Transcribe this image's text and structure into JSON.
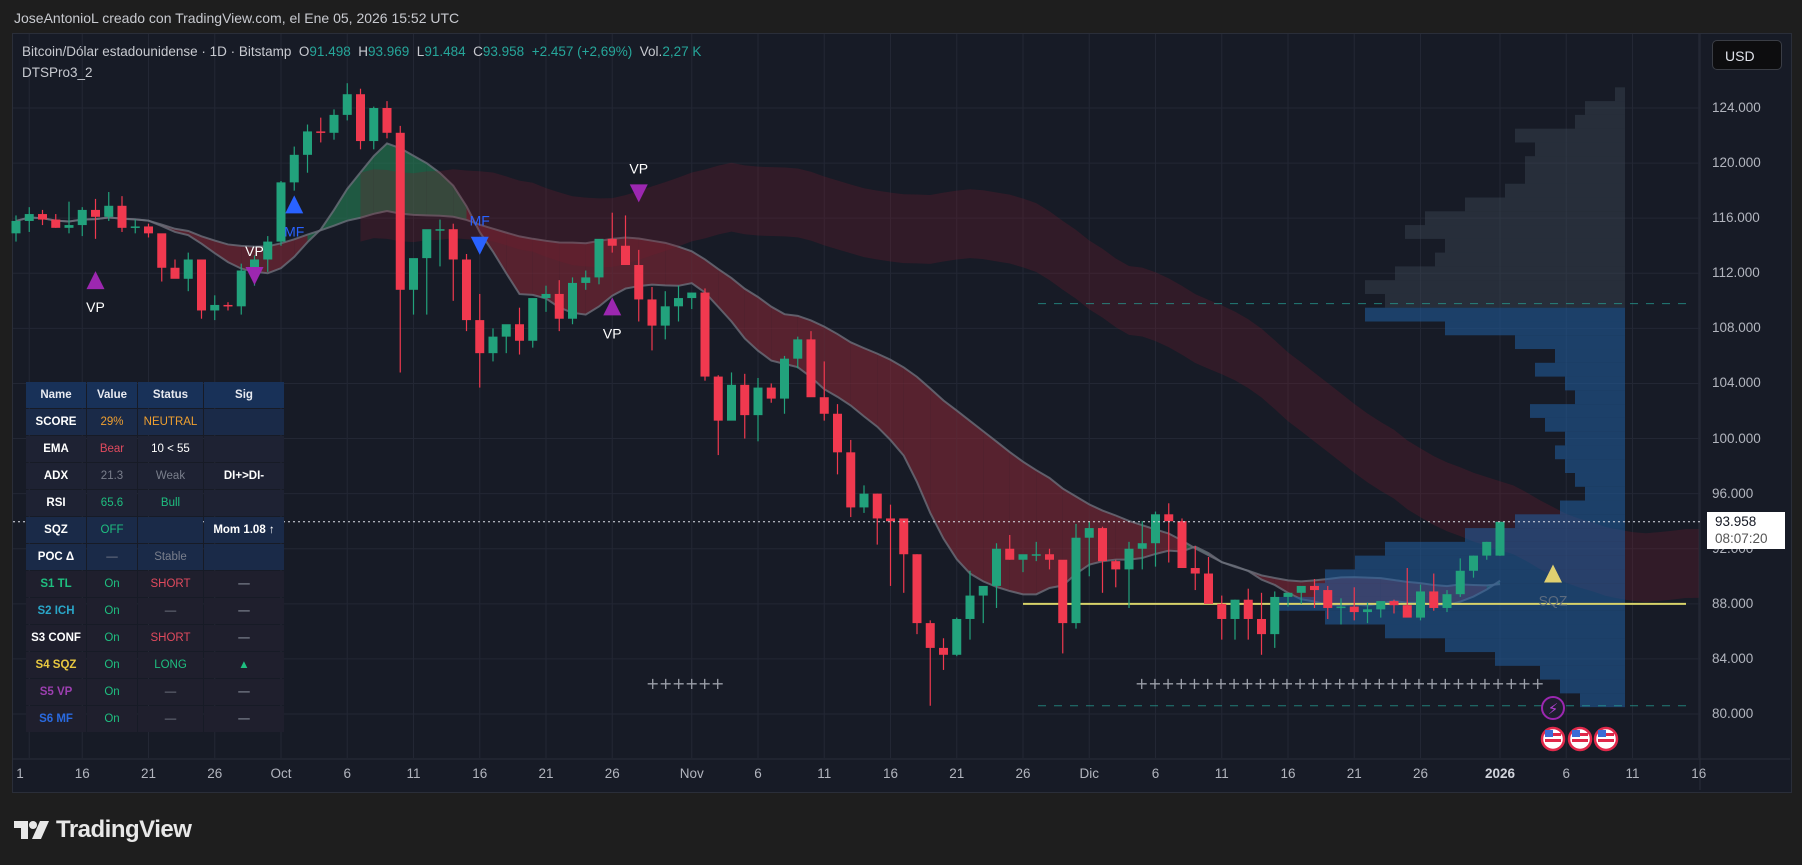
{
  "credit": "JoseAntonioL creado con TradingView.com, el Ene 05, 2026 15:52 UTC",
  "legend": {
    "symbol": "Bitcoin/Dólar estadounidense · 1D · Bitstamp",
    "o_label": "O",
    "o": "91.498",
    "h_label": "H",
    "h": "93.969",
    "l_label": "L",
    "l": "91.484",
    "c_label": "C",
    "c": "93.958",
    "change": "+2.457 (+2,69%)",
    "vol_label": "Vol.",
    "vol": "2,27 K",
    "indicator": "DTSPro3_2"
  },
  "currency_button": "USD",
  "current_price": {
    "price": "93.958",
    "countdown": "08:07:20"
  },
  "logo_text": "TradingView",
  "dashboard": {
    "header": [
      "Name",
      "Value",
      "Status",
      "Sig"
    ],
    "rows": [
      {
        "name": "SCORE",
        "value": "29%",
        "status": "NEUTRAL",
        "sig": "",
        "style": "blue",
        "name_color": "#ffffff",
        "value_color": "#f0a030",
        "status_color": "#f0a030",
        "sig_color": "#ffffff"
      },
      {
        "name": "EMA",
        "value": "Bear",
        "status": "10 < 55",
        "sig": "",
        "style": "dark",
        "name_color": "#ffffff",
        "value_color": "#e04a5e",
        "status_color": "#ffffff",
        "sig_color": "#ffffff"
      },
      {
        "name": "ADX",
        "value": "21.3",
        "status": "Weak",
        "sig": "DI+>DI-",
        "style": "dark",
        "name_color": "#ffffff",
        "value_color": "#7a7f8c",
        "status_color": "#7a7f8c",
        "sig_color": "#ffffff"
      },
      {
        "name": "RSI",
        "value": "65.6",
        "status": "Bull",
        "sig": "",
        "style": "dark",
        "name_color": "#ffffff",
        "value_color": "#1fbf80",
        "status_color": "#1fbf80",
        "sig_color": "#ffffff"
      },
      {
        "name": "SQZ",
        "value": "OFF",
        "status": "",
        "sig": "Mom 1.08 ↑",
        "style": "blue",
        "name_color": "#ffffff",
        "value_color": "#1fbf80",
        "status_color": "#ffffff",
        "sig_color": "#ffffff"
      },
      {
        "name": "POC Δ",
        "value": "—",
        "status": "Stable",
        "sig": "",
        "style": "blue",
        "name_color": "#ffffff",
        "value_color": "#7a7f8c",
        "status_color": "#7a7f8c",
        "sig_color": "#ffffff"
      },
      {
        "name": "S1 TL",
        "value": "On",
        "status": "SHORT",
        "sig": "—",
        "style": "sdark",
        "name_color": "#1fbf80",
        "value_color": "#1fbf80",
        "status_color": "#e04a5e",
        "sig_color": "#7a7f8c"
      },
      {
        "name": "S2 ICH",
        "value": "On",
        "status": "—",
        "sig": "—",
        "style": "sdark",
        "name_color": "#2aa6c8",
        "value_color": "#1fbf80",
        "status_color": "#7a7f8c",
        "sig_color": "#7a7f8c"
      },
      {
        "name": "S3 CONF",
        "value": "On",
        "status": "SHORT",
        "sig": "—",
        "style": "sdark",
        "name_color": "#ffffff",
        "value_color": "#1fbf80",
        "status_color": "#e04a5e",
        "sig_color": "#7a7f8c"
      },
      {
        "name": "S4 SQZ",
        "value": "On",
        "status": "LONG",
        "sig": "▲",
        "style": "sdark",
        "name_color": "#e8c840",
        "value_color": "#1fbf80",
        "status_color": "#1fbf80",
        "sig_color": "#1fbf80"
      },
      {
        "name": "S5 VP",
        "value": "On",
        "status": "—",
        "sig": "—",
        "style": "sdark",
        "name_color": "#9c3fb0",
        "value_color": "#1fbf80",
        "status_color": "#7a7f8c",
        "sig_color": "#7a7f8c"
      },
      {
        "name": "S6 MF",
        "value": "On",
        "status": "—",
        "sig": "—",
        "style": "sdark",
        "name_color": "#2a6ae0",
        "value_color": "#1fbf80",
        "status_color": "#7a7f8c",
        "sig_color": "#7a7f8c"
      }
    ]
  },
  "markers": [
    {
      "label": "VP",
      "shape": "up",
      "color": "#9c27b0",
      "day": -14,
      "price": 111500,
      "label_pos": "below"
    },
    {
      "label": "VP",
      "shape": "down",
      "color": "#9c27b0",
      "day": -2,
      "price": 111800,
      "label_pos": "above"
    },
    {
      "label": "MF",
      "shape": "up",
      "color": "#2962ff",
      "day": 1,
      "price": 117000,
      "label_pos": "below"
    },
    {
      "label": "MF",
      "shape": "down",
      "color": "#2962ff",
      "day": 15,
      "price": 114000,
      "label_pos": "above"
    },
    {
      "label": "VP",
      "shape": "up",
      "color": "#9c27b0",
      "day": 25,
      "price": 109600,
      "label_pos": "below"
    },
    {
      "label": "VP",
      "shape": "down",
      "color": "#9c27b0",
      "day": 27,
      "price": 117800,
      "label_pos": "above"
    },
    {
      "label": "SQZ",
      "shape": "up",
      "color": "#e0d070",
      "day": 96,
      "price": 90200,
      "label_pos": "below"
    }
  ],
  "chart_data": {
    "type": "candlestick",
    "title": "Bitcoin/Dólar estadounidense · 1D · Bitstamp",
    "xlabel": "",
    "ylabel": "USD",
    "ylim": [
      77000,
      127000
    ],
    "y_ticks": [
      "124.000",
      "120.000",
      "116.000",
      "112.000",
      "108.000",
      "104.000",
      "100.000",
      "96.000",
      "92.000",
      "88.000",
      "84.000",
      "80.000"
    ],
    "x_ticks": [
      {
        "label": "1",
        "day": -19
      },
      {
        "label": "16",
        "day": -15
      },
      {
        "label": "21",
        "day": -10
      },
      {
        "label": "26",
        "day": -5
      },
      {
        "label": "Oct",
        "day": 0
      },
      {
        "label": "6",
        "day": 5
      },
      {
        "label": "11",
        "day": 10
      },
      {
        "label": "16",
        "day": 15
      },
      {
        "label": "21",
        "day": 20
      },
      {
        "label": "26",
        "day": 25
      },
      {
        "label": "Nov",
        "day": 31
      },
      {
        "label": "6",
        "day": 36
      },
      {
        "label": "11",
        "day": 41
      },
      {
        "label": "16",
        "day": 46
      },
      {
        "label": "21",
        "day": 51
      },
      {
        "label": "26",
        "day": 56
      },
      {
        "label": "Dic",
        "day": 61
      },
      {
        "label": "6",
        "day": 66
      },
      {
        "label": "11",
        "day": 71
      },
      {
        "label": "16",
        "day": 76
      },
      {
        "label": "21",
        "day": 81
      },
      {
        "label": "26",
        "day": 86
      },
      {
        "label": "2026",
        "day": 92,
        "bold": true
      },
      {
        "label": "6",
        "day": 97
      },
      {
        "label": "11",
        "day": 102
      },
      {
        "label": "16",
        "day": 107
      }
    ],
    "grid": true,
    "legend_position": "none",
    "current_price": 93958,
    "poc_line": 88000,
    "value_area_high": 109800,
    "value_area_low": 80600,
    "candles_day0": "Oct 1 2025",
    "candles": [
      [
        -20,
        114900,
        116200,
        114300,
        115800
      ],
      [
        -19,
        115800,
        116800,
        115000,
        116300
      ],
      [
        -18,
        116300,
        116600,
        115500,
        115900
      ],
      [
        -17,
        115900,
        116300,
        115300,
        115300
      ],
      [
        -16,
        115300,
        117200,
        114900,
        115500
      ],
      [
        -15,
        115500,
        116800,
        114700,
        116600
      ],
      [
        -14,
        116600,
        117400,
        114500,
        116100
      ],
      [
        -13,
        116100,
        117900,
        115800,
        116900
      ],
      [
        -12,
        116900,
        117600,
        115000,
        115300
      ],
      [
        -11,
        115300,
        115900,
        114900,
        115400
      ],
      [
        -10,
        115400,
        115600,
        114600,
        114900
      ],
      [
        -9,
        114900,
        114700,
        111400,
        112400
      ],
      [
        -8,
        112400,
        113000,
        111700,
        111600
      ],
      [
        -7,
        111600,
        113500,
        110700,
        113000
      ],
      [
        -6,
        113000,
        113000,
        108700,
        109300
      ],
      [
        -5,
        109300,
        110400,
        108600,
        109700
      ],
      [
        -4,
        109700,
        109900,
        109300,
        109600
      ],
      [
        -3,
        109600,
        112700,
        109000,
        112200
      ],
      [
        -2,
        112200,
        113300,
        111100,
        113000
      ],
      [
        -1,
        113000,
        114700,
        112100,
        114300
      ],
      [
        0,
        114300,
        118700,
        114000,
        118600
      ],
      [
        1,
        118600,
        121200,
        118000,
        120600
      ],
      [
        2,
        120600,
        122800,
        119300,
        122300
      ],
      [
        3,
        122300,
        123300,
        121500,
        122200
      ],
      [
        4,
        122200,
        123900,
        121700,
        123500
      ],
      [
        5,
        123500,
        125800,
        123100,
        125000
      ],
      [
        6,
        125000,
        125400,
        121000,
        121600
      ],
      [
        7,
        121600,
        124100,
        121000,
        124000
      ],
      [
        8,
        124000,
        124500,
        121800,
        122200
      ],
      [
        9,
        122200,
        122700,
        104800,
        110800
      ],
      [
        10,
        110800,
        112300,
        109000,
        113100
      ],
      [
        11,
        113100,
        114000,
        109000,
        115200
      ],
      [
        12,
        115200,
        115900,
        112500,
        115200
      ],
      [
        13,
        115200,
        115600,
        110000,
        113000
      ],
      [
        14,
        113000,
        113400,
        107800,
        108600
      ],
      [
        15,
        108600,
        110500,
        103700,
        106200
      ],
      [
        16,
        106200,
        108000,
        105600,
        107400
      ],
      [
        17,
        107400,
        108000,
        106200,
        108300
      ],
      [
        18,
        108300,
        109500,
        106100,
        107100
      ],
      [
        19,
        107100,
        110000,
        106600,
        110200
      ],
      [
        20,
        110200,
        111100,
        109200,
        110500
      ],
      [
        21,
        110500,
        111500,
        107800,
        108700
      ],
      [
        22,
        108700,
        111700,
        108300,
        111300
      ],
      [
        23,
        111300,
        112200,
        110800,
        111700
      ],
      [
        24,
        111700,
        114300,
        111200,
        114500
      ],
      [
        25,
        114500,
        116400,
        113500,
        114000
      ],
      [
        26,
        114000,
        116200,
        112600,
        112600
      ],
      [
        27,
        112600,
        113700,
        108500,
        110100
      ],
      [
        28,
        110100,
        111000,
        106400,
        108200
      ],
      [
        29,
        108200,
        110700,
        107200,
        109600
      ],
      [
        30,
        109600,
        111100,
        108500,
        110200
      ],
      [
        31,
        110200,
        110600,
        109400,
        110600
      ],
      [
        32,
        110600,
        110900,
        104200,
        104500
      ],
      [
        33,
        104500,
        104600,
        98800,
        101300
      ],
      [
        34,
        101300,
        104800,
        101500,
        103900
      ],
      [
        35,
        103900,
        104700,
        100000,
        101700
      ],
      [
        36,
        101700,
        104400,
        99800,
        103700
      ],
      [
        37,
        103700,
        104000,
        102600,
        102900
      ],
      [
        38,
        102900,
        106000,
        101800,
        105800
      ],
      [
        39,
        105800,
        107400,
        105100,
        107200
      ],
      [
        40,
        107200,
        107800,
        104800,
        103000
      ],
      [
        41,
        103000,
        105600,
        101300,
        101800
      ],
      [
        42,
        101800,
        102500,
        97400,
        99000
      ],
      [
        43,
        99000,
        99900,
        94300,
        95000
      ],
      [
        44,
        95000,
        96600,
        94600,
        96000
      ],
      [
        45,
        96000,
        96000,
        92300,
        94200
      ],
      [
        46,
        94200,
        95200,
        89300,
        94000
      ],
      [
        47,
        94200,
        93800,
        88800,
        91600
      ],
      [
        48,
        91600,
        91600,
        85800,
        86600
      ],
      [
        49,
        86600,
        86800,
        80600,
        84800
      ],
      [
        50,
        84800,
        85500,
        83200,
        84300
      ],
      [
        51,
        84300,
        87000,
        84200,
        86900
      ],
      [
        52,
        86900,
        90400,
        85400,
        88600
      ],
      [
        53,
        88600,
        89000,
        86600,
        89300
      ],
      [
        54,
        89300,
        92400,
        87700,
        92000
      ],
      [
        55,
        92000,
        93000,
        91200,
        91200
      ],
      [
        56,
        91200,
        91400,
        90300,
        91600
      ],
      [
        57,
        91600,
        92500,
        91100,
        91600
      ],
      [
        58,
        91600,
        92000,
        90500,
        91200
      ],
      [
        59,
        91200,
        91000,
        84400,
        86600
      ],
      [
        60,
        86600,
        93800,
        86200,
        92800
      ],
      [
        61,
        92800,
        94000,
        90000,
        93500
      ],
      [
        62,
        93500,
        93600,
        88800,
        91100
      ],
      [
        63,
        91100,
        91200,
        89200,
        90500
      ],
      [
        64,
        90500,
        92500,
        87700,
        92000
      ],
      [
        65,
        92000,
        94000,
        90500,
        92400
      ],
      [
        66,
        92400,
        94700,
        90700,
        94500
      ],
      [
        67,
        94500,
        95300,
        91000,
        94000
      ],
      [
        68,
        94000,
        94200,
        90800,
        90600
      ],
      [
        69,
        90600,
        92200,
        89000,
        90200
      ],
      [
        70,
        90200,
        91400,
        89000,
        88000
      ],
      [
        71,
        88000,
        88600,
        85400,
        86900
      ],
      [
        72,
        86900,
        88300,
        85400,
        88300
      ],
      [
        73,
        88300,
        89100,
        85400,
        86900
      ],
      [
        74,
        86900,
        88800,
        84300,
        85800
      ],
      [
        75,
        85800,
        88900,
        84800,
        88500
      ],
      [
        76,
        88500,
        88700,
        87800,
        88800
      ],
      [
        77,
        88800,
        89200,
        88000,
        89300
      ],
      [
        78,
        89300,
        89800,
        87700,
        89000
      ],
      [
        79,
        89000,
        89300,
        86900,
        87700
      ],
      [
        80,
        87700,
        88400,
        86500,
        87800
      ],
      [
        81,
        87800,
        89200,
        86800,
        87400
      ],
      [
        82,
        87400,
        88100,
        86600,
        87600
      ],
      [
        83,
        87600,
        88000,
        87000,
        88200
      ],
      [
        84,
        88200,
        88300,
        87300,
        87900
      ],
      [
        85,
        87900,
        90600,
        87100,
        87000
      ],
      [
        86,
        87000,
        89400,
        86800,
        88900
      ],
      [
        87,
        88900,
        90200,
        87500,
        87700
      ],
      [
        88,
        87700,
        89000,
        87400,
        88700
      ],
      [
        89,
        88700,
        91300,
        88500,
        90400
      ],
      [
        90,
        90400,
        91500,
        89900,
        91500
      ],
      [
        91,
        91500,
        92500,
        91200,
        92500
      ],
      [
        92,
        91498,
        93969,
        91484,
        93958
      ]
    ]
  }
}
